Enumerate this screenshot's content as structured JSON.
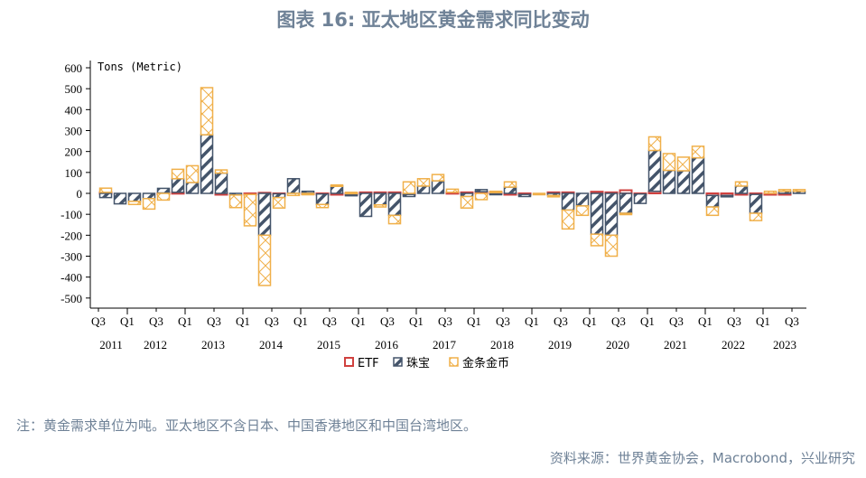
{
  "title": "图表 16: 亚太地区黄金需求同比变动",
  "note": "注：黄金需求单位为吨。亚太地区不含日本、中国香港地区和中国台湾地区。",
  "source": "资料来源：世界黄金协会，Macrobond，兴业研究",
  "colors": {
    "ETF": "#d0413f",
    "jewelry": "#44546a",
    "barcoin": "#f0b04a"
  },
  "chart_data": {
    "type": "bar",
    "stacked": true,
    "unit_label": "Tons (Metric)",
    "ylim": [
      -500,
      600
    ],
    "yticks": [
      600,
      500,
      400,
      300,
      200,
      100,
      0,
      -100,
      -200,
      -300,
      -400,
      -500
    ],
    "grid": false,
    "legend_position": "bottom",
    "categories": [
      "Q3 2011",
      "Q4 2011",
      "Q1 2012",
      "Q2 2012",
      "Q3 2012",
      "Q4 2012",
      "Q1 2013",
      "Q2 2013",
      "Q3 2013",
      "Q4 2013",
      "Q1 2014",
      "Q2 2014",
      "Q3 2014",
      "Q4 2014",
      "Q1 2015",
      "Q2 2015",
      "Q3 2015",
      "Q4 2015",
      "Q1 2016",
      "Q2 2016",
      "Q3 2016",
      "Q4 2016",
      "Q1 2017",
      "Q2 2017",
      "Q3 2017",
      "Q4 2017",
      "Q1 2018",
      "Q2 2018",
      "Q3 2018",
      "Q4 2018",
      "Q1 2019",
      "Q2 2019",
      "Q3 2019",
      "Q4 2019",
      "Q1 2020",
      "Q2 2020",
      "Q3 2020",
      "Q4 2020",
      "Q1 2021",
      "Q2 2021",
      "Q3 2021",
      "Q4 2021",
      "Q1 2022",
      "Q2 2022",
      "Q3 2022",
      "Q4 2022",
      "Q1 2023",
      "Q2 2023",
      "Q3 2023"
    ],
    "quarter_labels": [
      "Q3",
      "Q1",
      "Q3",
      "Q1",
      "Q3",
      "Q1",
      "Q3",
      "Q1",
      "Q3",
      "Q1",
      "Q3",
      "Q1",
      "Q3",
      "Q1",
      "Q3",
      "Q1",
      "Q3",
      "Q1",
      "Q3",
      "Q1",
      "Q3",
      "Q1",
      "Q3",
      "Q1",
      "Q3"
    ],
    "year_labels": [
      "2011",
      "2012",
      "2013",
      "2014",
      "2015",
      "2016",
      "2017",
      "2018",
      "2019",
      "2020",
      "2021",
      "2022",
      "2023"
    ],
    "series": [
      {
        "name": "ETF",
        "values": [
          5,
          0,
          0,
          0,
          2,
          5,
          0,
          0,
          -5,
          0,
          -5,
          3,
          -2,
          0,
          2,
          -3,
          -3,
          -5,
          5,
          5,
          5,
          -5,
          0,
          0,
          5,
          5,
          8,
          5,
          -5,
          -5,
          0,
          5,
          5,
          0,
          8,
          5,
          15,
          -3,
          10,
          0,
          0,
          0,
          -10,
          -10,
          -3,
          -5,
          -5,
          -3,
          0
        ]
      },
      {
        "name": "珠宝",
        "values": [
          -20,
          -50,
          -38,
          -25,
          22,
          65,
          52,
          280,
          97,
          -8,
          0,
          -200,
          -18,
          70,
          8,
          -50,
          35,
          -5,
          -110,
          -55,
          -105,
          -10,
          35,
          60,
          0,
          -15,
          10,
          -5,
          30,
          -10,
          0,
          -10,
          -80,
          -60,
          -195,
          -200,
          -95,
          -45,
          195,
          110,
          108,
          170,
          -55,
          -5,
          35,
          -90,
          0,
          10,
          10
        ]
      },
      {
        "name": "金条金币",
        "values": [
          20,
          0,
          -15,
          -50,
          -32,
          45,
          80,
          225,
          15,
          -60,
          -150,
          -240,
          -50,
          -10,
          -5,
          -15,
          5,
          5,
          0,
          -10,
          -40,
          55,
          35,
          30,
          15,
          -55,
          -30,
          5,
          25,
          0,
          -3,
          -5,
          -90,
          -45,
          -55,
          -100,
          -5,
          0,
          65,
          80,
          65,
          55,
          -40,
          0,
          20,
          -35,
          10,
          8,
          8
        ]
      }
    ]
  }
}
